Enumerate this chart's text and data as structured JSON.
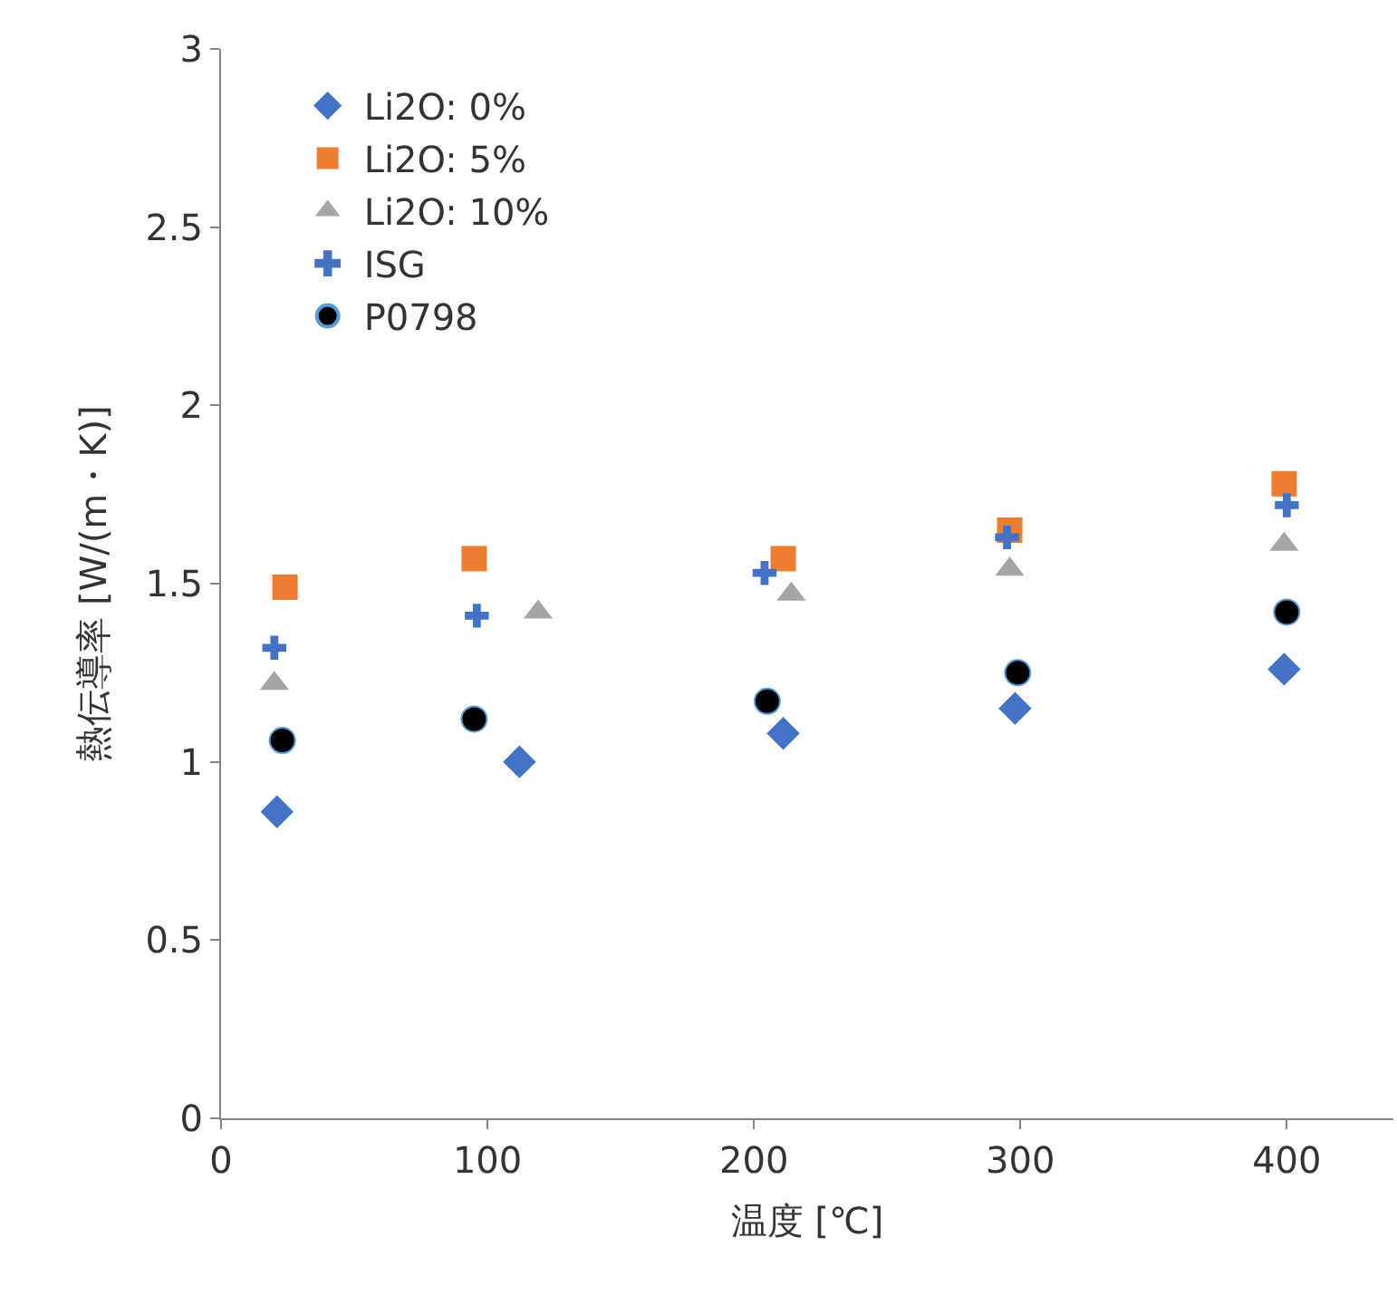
{
  "chart_data": {
    "type": "scatter",
    "xlabel": "温度 [℃]",
    "ylabel": "熱伝導率 [W/(m・K)]",
    "xlim": [
      0,
      440
    ],
    "xticks": [
      0,
      100,
      200,
      300,
      400
    ],
    "ylim": [
      0,
      3
    ],
    "yticks": [
      0,
      0.5,
      1,
      1.5,
      2,
      2.5,
      3
    ],
    "legend": "top left",
    "series": [
      {
        "name": "Li2O: 0%",
        "color": "#4472c4",
        "marker": "diamond",
        "x": [
          21,
          112,
          211,
          298,
          399
        ],
        "values": [
          0.86,
          1.0,
          1.08,
          1.15,
          1.26
        ]
      },
      {
        "name": "Li2O: 5%",
        "color": "#ed7d31",
        "marker": "square",
        "x": [
          24,
          95,
          211,
          296,
          399
        ],
        "values": [
          1.49,
          1.57,
          1.57,
          1.65,
          1.78
        ]
      },
      {
        "name": "Li2O: 10%",
        "color": "#a5a5a5",
        "marker": "triangle",
        "x": [
          20,
          119,
          214,
          296,
          399
        ],
        "values": [
          1.22,
          1.42,
          1.47,
          1.54,
          1.61
        ]
      },
      {
        "name": "ISG",
        "color": "#4472c4",
        "marker": "cross",
        "x": [
          20,
          96,
          204,
          295,
          400
        ],
        "values": [
          1.32,
          1.41,
          1.53,
          1.63,
          1.72
        ]
      },
      {
        "name": "P0798",
        "color": "#000000",
        "marker": "circle",
        "x": [
          23,
          95,
          205,
          299,
          400
        ],
        "values": [
          1.06,
          1.12,
          1.17,
          1.25,
          1.42
        ]
      }
    ]
  }
}
